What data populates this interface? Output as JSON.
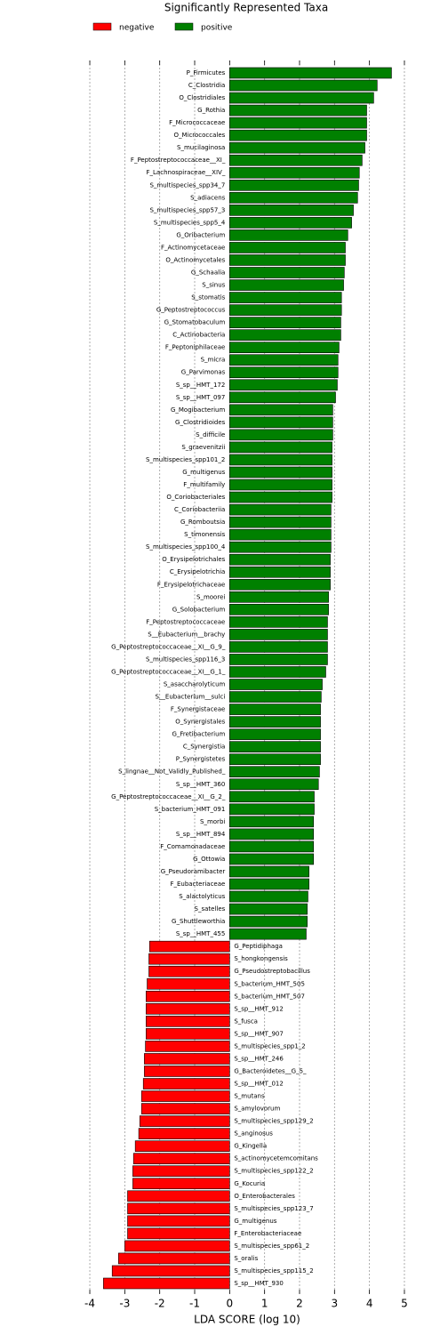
{
  "chart_data": {
    "type": "hbar",
    "title": "Significantly Represented Taxa",
    "xlabel": "LDA SCORE (log 10)",
    "legend": [
      {
        "name": "negative",
        "color": "#ff0000"
      },
      {
        "name": "positive",
        "color": "#008000"
      }
    ],
    "legend_position": "top-left",
    "grid": true,
    "xlim": [
      -4.4,
      5.4
    ],
    "xticks": [
      -4,
      -3,
      -2,
      -1,
      0,
      1,
      2,
      3,
      4,
      5
    ],
    "categories": [
      "P_Firmicutes",
      "C_Clostridia",
      "O_Clostridiales",
      "G_Rothia",
      "F_Micrococcaceae",
      "O_Micrococcales",
      "S_mucilaginosa",
      "F_Peptostreptococcaceae__XI_",
      "F_Lachnospiraceae__XIV_",
      "S_multispecies_spp34_7",
      "S_adiacens",
      "S_multispecies_spp57_3",
      "S_multispecies_spp5_4",
      "G_Oribacterium",
      "F_Actinomycetaceae",
      "O_Actinomycetales",
      "G_Schaalia",
      "S_sinus",
      "S_stomatis",
      "G_Peptostreptococcus",
      "G_Stomatobaculum",
      "C_Actinobacteria",
      "F_Peptoniphilaceae",
      "S_micra",
      "G_Parvimonas",
      "S_sp__HMT_172",
      "S_sp__HMT_097",
      "G_Mogibacterium",
      "G_Clostridioides",
      "S_difficile",
      "S_graevenitzii",
      "S_multispecies_spp101_2",
      "G_multigenus",
      "F_multifamily",
      "O_Coriobacteriales",
      "C_Coriobacteriia",
      "G_Romboutsia",
      "S_timonensis",
      "S_multispecies_spp100_4",
      "O_Erysipelotrichales",
      "C_Erysipelotrichia",
      "F_Erysipelotrichaceae",
      "S_moorei",
      "G_Solobacterium",
      "F_Peptostreptococcaceae",
      "S__Eubacterium__brachy",
      "G_Peptostreptococcaceae__XI__G_9_",
      "S_multispecies_spp116_3",
      "G_Peptostreptococcaceae__XI__G_1_",
      "S_asaccharolyticum",
      "S__Eubacterium__sulci",
      "F_Synergistaceae",
      "O_Synergistales",
      "G_Fretibacterium",
      "C_Synergistia",
      "P_Synergistetes",
      "S_lingnae__Not_Validly_Published_",
      "S_sp__HMT_360",
      "G_Peptostreptococcaceae__XI__G_2_",
      "S_bacterium_HMT_091",
      "S_morbi",
      "S_sp__HMT_894",
      "F_Comamonadaceae",
      "G_Ottowia",
      "G_Pseudoramibacter",
      "F_Eubacteriaceae",
      "S_alactolyticus",
      "S_satelles",
      "G_Shuttleworthia",
      "S_sp__HMT_455",
      "G_Peptidiphaga",
      "S_hongkongensis",
      "G_Pseudostreptobacillus",
      "S_bacterium_HMT_505",
      "S_bacterium_HMT_507",
      "S_sp__HMT_912",
      "S_fusca",
      "S_sp__HMT_907",
      "S_multispecies_spp1_2",
      "S_sp__HMT_246",
      "G_Bacteroidetes__G_5_",
      "S_sp__HMT_012",
      "S_mutans",
      "S_amylovorum",
      "S_multispecies_spp129_2",
      "S_anginosus",
      "G_Kingella",
      "S_actinomycetemcomitans",
      "S_multispecies_spp122_2",
      "G_Kocuria",
      "O_Enterobacterales",
      "S_multispecies_spp123_7",
      "G_multigenus",
      "F_Enterobacteriaceae",
      "S_multispecies_spp61_2",
      "S_oralis",
      "S_multispecies_spp115_2",
      "S_sp__HMT_930"
    ],
    "values": [
      4.63,
      4.22,
      4.12,
      3.92,
      3.92,
      3.92,
      3.87,
      3.79,
      3.71,
      3.69,
      3.66,
      3.54,
      3.49,
      3.38,
      3.31,
      3.31,
      3.28,
      3.26,
      3.2,
      3.2,
      3.18,
      3.18,
      3.13,
      3.1,
      3.1,
      3.08,
      3.03,
      2.95,
      2.95,
      2.95,
      2.93,
      2.93,
      2.93,
      2.93,
      2.93,
      2.9,
      2.9,
      2.9,
      2.9,
      2.88,
      2.88,
      2.88,
      2.83,
      2.83,
      2.8,
      2.8,
      2.8,
      2.8,
      2.75,
      2.65,
      2.62,
      2.6,
      2.6,
      2.6,
      2.6,
      2.6,
      2.57,
      2.54,
      2.42,
      2.42,
      2.4,
      2.4,
      2.4,
      2.4,
      2.27,
      2.27,
      2.24,
      2.22,
      2.22,
      2.19,
      -2.29,
      -2.31,
      -2.31,
      -2.36,
      -2.39,
      -2.39,
      -2.39,
      -2.39,
      -2.41,
      -2.44,
      -2.44,
      -2.47,
      -2.52,
      -2.52,
      -2.57,
      -2.6,
      -2.7,
      -2.75,
      -2.77,
      -2.77,
      -2.92,
      -2.92,
      -2.92,
      -2.92,
      -3.0,
      -3.18,
      -3.36,
      -3.61
    ]
  }
}
